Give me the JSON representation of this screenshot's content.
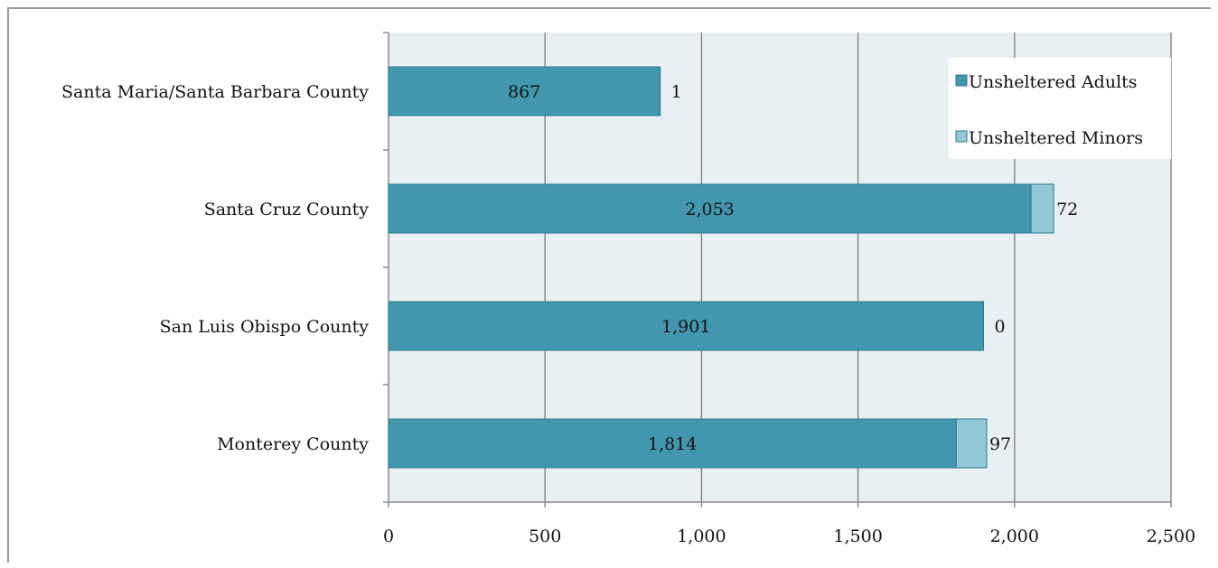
{
  "chart_data": {
    "type": "bar",
    "orientation": "horizontal",
    "stacked": true,
    "categories": [
      "Santa Maria/Santa Barbara County",
      "Santa Cruz County",
      "San Luis Obispo County",
      "Monterey County"
    ],
    "series": [
      {
        "name": "Unsheltered Adults",
        "values": [
          867,
          2053,
          1901,
          1814
        ],
        "labels": [
          "867",
          "2,053",
          "1,901",
          "1,814"
        ],
        "color": "#4296ad"
      },
      {
        "name": "Unsheltered Minors",
        "values": [
          1,
          72,
          0,
          97
        ],
        "labels": [
          "1",
          "72",
          "0",
          "97"
        ],
        "color": "#93c8d8"
      }
    ],
    "xlim": [
      0,
      2500
    ],
    "xticks": [
      0,
      500,
      1000,
      1500,
      2000,
      2500
    ],
    "xtick_labels": [
      "0",
      "500",
      "1,000",
      "1,500",
      "2,000",
      "2,500"
    ],
    "grid": true,
    "legend_position": "top-right",
    "plot_background": "#e8f0f4"
  }
}
